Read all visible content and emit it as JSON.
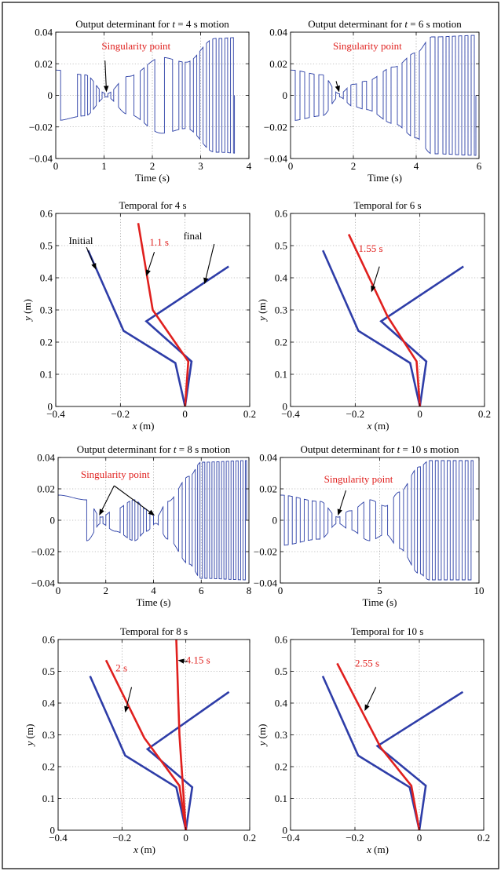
{
  "colors": {
    "signal": "#2B3FA6",
    "link_blue": "#2E3DA8",
    "link_red": "#E0201E"
  },
  "chart_data": [
    {
      "id": "det4",
      "type": "line",
      "title_parts": [
        "Output determinant for ",
        "t",
        " = 4 s motion"
      ],
      "xlabel": "Time (s)",
      "ylabel": "",
      "xlim": [
        0,
        4
      ],
      "ylim": [
        -0.04,
        0.04
      ],
      "xticks": [
        0,
        1,
        2,
        3,
        4
      ],
      "xticklabels": [
        "0",
        "1",
        "2",
        "3",
        "4"
      ],
      "yticks": [
        -0.04,
        -0.02,
        0,
        0.02,
        0.04
      ],
      "yticklabels": [
        "−0.04",
        "−0.02",
        "0",
        "0.02",
        "0.04"
      ],
      "grid": true,
      "envelope_knots": [
        [
          0,
          0.016
        ],
        [
          0.6,
          0.013
        ],
        [
          1.05,
          0.001
        ],
        [
          1.5,
          0.012
        ],
        [
          2.2,
          0.024
        ],
        [
          2.7,
          0.021
        ],
        [
          3.3,
          0.036
        ],
        [
          4,
          0.037
        ]
      ],
      "switch_times": [
        0.1,
        0.45,
        0.52,
        0.6,
        0.66,
        0.72,
        0.78,
        0.84,
        0.9,
        0.96,
        1.02,
        1.08,
        1.14,
        1.2,
        1.3,
        1.45,
        1.62,
        1.75,
        1.83,
        1.9,
        2.05,
        2.25,
        2.42,
        2.55,
        2.62,
        2.68,
        2.78,
        2.85,
        2.92,
        2.98,
        3.05,
        3.12,
        3.18,
        3.25,
        3.32,
        3.38,
        3.44,
        3.5,
        3.56,
        3.62,
        3.68
      ],
      "signal_end": 3.7,
      "annotations": [
        {
          "text": "Singularity point",
          "color": "red",
          "text_xy": [
            0.95,
            0.029
          ],
          "arrow_from": [
            1.02,
            0.022
          ],
          "arrow_to": [
            1.05,
            0.002
          ]
        }
      ]
    },
    {
      "id": "det6",
      "type": "line",
      "title_parts": [
        "Output determinant for ",
        "t",
        " = 6 s motion"
      ],
      "xlabel": "Time (s)",
      "ylabel": "",
      "xlim": [
        0,
        6
      ],
      "ylim": [
        -0.04,
        0.04
      ],
      "xticks": [
        0,
        2,
        4,
        6
      ],
      "xticklabels": [
        "0",
        "2",
        "4",
        "6"
      ],
      "yticks": [
        -0.04,
        -0.02,
        0,
        0.02,
        0.04
      ],
      "yticklabels": [
        "−0.04",
        "−0.02",
        "0",
        "0.02",
        "0.04"
      ],
      "grid": true,
      "envelope_knots": [
        [
          0,
          0.016
        ],
        [
          1.0,
          0.013
        ],
        [
          1.55,
          0.001
        ],
        [
          2.0,
          0.007
        ],
        [
          2.4,
          0.009
        ],
        [
          3.3,
          0.018
        ],
        [
          4.0,
          0.027
        ],
        [
          4.5,
          0.037
        ],
        [
          6,
          0.038
        ]
      ],
      "switch_times": [
        0.15,
        0.3,
        0.45,
        0.6,
        0.75,
        0.9,
        1.05,
        1.2,
        1.32,
        1.44,
        1.56,
        1.68,
        1.8,
        1.92,
        2.1,
        2.28,
        2.42,
        2.6,
        2.75,
        2.95,
        3.05,
        3.2,
        3.4,
        3.55,
        3.7,
        3.82,
        3.95,
        4.1,
        4.3,
        4.45,
        4.6,
        4.7,
        4.85,
        4.95,
        5.05,
        5.15,
        5.25,
        5.35,
        5.45,
        5.55,
        5.65,
        5.75,
        5.85
      ],
      "signal_end": 5.9,
      "annotations": [
        {
          "text": "Singularity point",
          "color": "red",
          "text_xy": [
            1.35,
            0.029
          ],
          "arrow_from": [
            1.45,
            0.009
          ],
          "arrow_to": [
            1.55,
            0.002
          ]
        }
      ]
    },
    {
      "id": "temp4",
      "type": "line",
      "title_parts": [
        "Temporal for 4 s"
      ],
      "xlabel_parts": [
        "x",
        " (m)"
      ],
      "ylabel_parts": [
        "y",
        " (m)"
      ],
      "xlim": [
        -0.4,
        0.2
      ],
      "ylim": [
        0,
        0.6
      ],
      "xticks": [
        -0.4,
        -0.2,
        0,
        0.2
      ],
      "xticklabels": [
        "−0.4",
        "−0.2",
        "0",
        "0.2"
      ],
      "yticks": [
        0,
        0.1,
        0.2,
        0.3,
        0.4,
        0.5,
        0.6
      ],
      "yticklabels": [
        "0",
        "0.1",
        "0.2",
        "0.3",
        "0.4",
        "0.5",
        "0.6"
      ],
      "grid": true,
      "series": [
        {
          "color": "blue",
          "points": [
            [
              -0.3,
              0.485
            ],
            [
              -0.19,
              0.235
            ],
            [
              -0.03,
              0.135
            ],
            [
              0,
              0
            ]
          ]
        },
        {
          "color": "blue",
          "points": [
            [
              0.135,
              0.435
            ],
            [
              -0.12,
              0.265
            ],
            [
              0.02,
              0.14
            ],
            [
              0,
              0
            ]
          ]
        },
        {
          "color": "red",
          "points": [
            [
              -0.145,
              0.57
            ],
            [
              -0.1,
              0.3
            ],
            [
              0.01,
              0.14
            ],
            [
              0,
              0
            ]
          ]
        }
      ],
      "annotations": [
        {
          "text": "Initial",
          "color": "black",
          "text_xy": [
            -0.36,
            0.505
          ],
          "arrow_from": [
            -0.305,
            0.495
          ],
          "arrow_to": [
            -0.275,
            0.425
          ]
        },
        {
          "text": "1.1 s",
          "color": "red",
          "text_xy": [
            -0.11,
            0.5
          ],
          "arrow_from": [
            -0.095,
            0.48
          ],
          "arrow_to": [
            -0.12,
            0.405
          ]
        },
        {
          "text": "final",
          "color": "black",
          "text_xy": [
            -0.005,
            0.52
          ],
          "arrow_from": [
            0.09,
            0.505
          ],
          "arrow_to": [
            0.06,
            0.38
          ]
        }
      ]
    },
    {
      "id": "temp6",
      "type": "line",
      "title_parts": [
        "Temporal for 6 s"
      ],
      "xlabel_parts": [
        "x",
        " (m)"
      ],
      "ylabel_parts": [
        "y",
        " (m)"
      ],
      "xlim": [
        -0.4,
        0.2
      ],
      "ylim": [
        0,
        0.6
      ],
      "xticks": [
        -0.4,
        -0.2,
        0,
        0.2
      ],
      "xticklabels": [
        "−0.4",
        "−0.2",
        "0",
        "0.2"
      ],
      "yticks": [
        0,
        0.1,
        0.2,
        0.3,
        0.4,
        0.5,
        0.6
      ],
      "yticklabels": [
        "0",
        "0.1",
        "0.2",
        "0.3",
        "0.4",
        "0.5",
        "0.6"
      ],
      "grid": true,
      "series": [
        {
          "color": "blue",
          "points": [
            [
              -0.3,
              0.485
            ],
            [
              -0.19,
              0.235
            ],
            [
              -0.03,
              0.135
            ],
            [
              0,
              0
            ]
          ]
        },
        {
          "color": "blue",
          "points": [
            [
              0.135,
              0.435
            ],
            [
              -0.12,
              0.265
            ],
            [
              0.02,
              0.14
            ],
            [
              0,
              0
            ]
          ]
        },
        {
          "color": "red",
          "points": [
            [
              -0.22,
              0.535
            ],
            [
              -0.1,
              0.28
            ],
            [
              -0.01,
              0.14
            ],
            [
              0,
              0
            ]
          ]
        }
      ],
      "annotations": [
        {
          "text": "1.55 s",
          "color": "red",
          "text_xy": [
            -0.19,
            0.48
          ],
          "arrow_from": [
            -0.125,
            0.435
          ],
          "arrow_to": [
            -0.15,
            0.355
          ]
        }
      ]
    },
    {
      "id": "det8",
      "type": "line",
      "title_parts": [
        "Output determinant for ",
        "t",
        " = 8 s motion"
      ],
      "xlabel": "Time (s)",
      "ylabel": "",
      "xlim": [
        0,
        8
      ],
      "ylim": [
        -0.04,
        0.04
      ],
      "xticks": [
        0,
        2,
        4,
        6,
        8
      ],
      "xticklabels": [
        "0",
        "2",
        "4",
        "6",
        "8"
      ],
      "yticks": [
        -0.04,
        -0.02,
        0,
        0.02,
        0.04
      ],
      "yticklabels": [
        "−0.04",
        "−0.02",
        "0",
        "0.02",
        "0.04"
      ],
      "grid": true,
      "envelope_knots": [
        [
          0,
          0.016
        ],
        [
          1.2,
          0.013
        ],
        [
          1.8,
          0.002
        ],
        [
          2.4,
          0.007
        ],
        [
          3.2,
          0.013
        ],
        [
          3.7,
          0.007
        ],
        [
          4.1,
          0.002
        ],
        [
          4.6,
          0.012
        ],
        [
          5.5,
          0.028
        ],
        [
          6.0,
          0.037
        ],
        [
          8,
          0.038
        ]
      ],
      "switch_times": [
        1.2,
        1.5,
        1.62,
        1.75,
        1.88,
        2.0,
        2.15,
        2.6,
        2.75,
        2.9,
        3.0,
        3.1,
        3.22,
        3.35,
        3.45,
        3.58,
        3.7,
        3.85,
        4.0,
        4.2,
        4.4,
        4.6,
        4.85,
        5.05,
        5.2,
        5.35,
        5.5,
        5.62,
        5.75,
        5.85,
        5.95,
        6.05,
        6.15,
        6.25,
        6.35,
        6.45,
        6.55,
        6.65,
        6.75,
        6.85,
        6.95,
        7.05,
        7.15,
        7.25,
        7.35,
        7.45,
        7.55,
        7.65,
        7.75,
        7.85
      ],
      "signal_end": 7.9,
      "annotations": [
        {
          "text": "Singularity point",
          "color": "red",
          "text_xy": [
            0.95,
            0.027
          ],
          "arrow_from": [
            2.35,
            0.022
          ],
          "arrow_to": [
            1.72,
            0.003
          ]
        },
        {
          "text": "",
          "color": "red",
          "text_xy": [
            2.35,
            0.022
          ],
          "arrow_from": [
            2.35,
            0.022
          ],
          "arrow_to": [
            4.05,
            0.003
          ]
        }
      ]
    },
    {
      "id": "det10",
      "type": "line",
      "title_parts": [
        "Output determinant for ",
        "t",
        " = 10 s motion"
      ],
      "xlabel": "Time (s)",
      "ylabel": "",
      "xlim": [
        0,
        10
      ],
      "ylim": [
        -0.04,
        0.04
      ],
      "xticks": [
        0,
        5,
        10
      ],
      "xticklabels": [
        "0",
        "5",
        "10"
      ],
      "yticks": [
        -0.04,
        -0.02,
        0,
        0.02,
        0.04
      ],
      "yticklabels": [
        "−0.04",
        "−0.02",
        "0",
        "0.02",
        "0.04"
      ],
      "grid": true,
      "envelope_knots": [
        [
          0,
          0.016
        ],
        [
          2.0,
          0.012
        ],
        [
          2.9,
          0.002
        ],
        [
          3.5,
          0.006
        ],
        [
          4.5,
          0.013
        ],
        [
          5.3,
          0.009
        ],
        [
          6.0,
          0.018
        ],
        [
          7.0,
          0.034
        ],
        [
          7.5,
          0.038
        ],
        [
          10,
          0.038
        ]
      ],
      "switch_times": [
        0.2,
        0.4,
        0.6,
        0.8,
        1.0,
        1.2,
        1.4,
        1.6,
        1.8,
        2.0,
        2.2,
        2.4,
        2.6,
        2.8,
        3.0,
        3.3,
        3.6,
        3.9,
        4.2,
        4.5,
        4.8,
        5.1,
        5.4,
        5.7,
        6.0,
        6.2,
        6.4,
        6.6,
        6.75,
        6.9,
        7.05,
        7.2,
        7.35,
        7.5,
        7.65,
        7.8,
        7.95,
        8.1,
        8.25,
        8.4,
        8.55,
        8.7,
        8.85,
        9.0,
        9.15,
        9.3,
        9.45,
        9.6
      ],
      "signal_end": 9.7,
      "annotations": [
        {
          "text": "Singularity point",
          "color": "red",
          "text_xy": [
            2.2,
            0.024
          ],
          "arrow_from": [
            3.3,
            0.019
          ],
          "arrow_to": [
            2.9,
            0.003
          ]
        }
      ]
    },
    {
      "id": "temp8",
      "type": "line",
      "title_parts": [
        "Temporal for 8 s"
      ],
      "xlabel_parts": [
        "x",
        " (m)"
      ],
      "ylabel_parts": [
        "y",
        " (m)"
      ],
      "xlim": [
        -0.4,
        0.2
      ],
      "ylim": [
        0,
        0.6
      ],
      "xticks": [
        -0.4,
        -0.2,
        0,
        0.2
      ],
      "xticklabels": [
        "−0.4",
        "−0.2",
        "0",
        "0.2"
      ],
      "yticks": [
        0,
        0.1,
        0.2,
        0.3,
        0.4,
        0.5,
        0.6
      ],
      "yticklabels": [
        "0",
        "0.1",
        "0.2",
        "0.3",
        "0.4",
        "0.5",
        "0.6"
      ],
      "grid": true,
      "series": [
        {
          "color": "blue",
          "points": [
            [
              -0.3,
              0.485
            ],
            [
              -0.19,
              0.235
            ],
            [
              -0.03,
              0.135
            ],
            [
              0,
              0
            ]
          ]
        },
        {
          "color": "blue",
          "points": [
            [
              0.135,
              0.435
            ],
            [
              -0.12,
              0.255
            ],
            [
              0.02,
              0.135
            ],
            [
              0,
              0
            ]
          ]
        },
        {
          "color": "red",
          "points": [
            [
              -0.25,
              0.535
            ],
            [
              -0.13,
              0.29
            ],
            [
              -0.02,
              0.14
            ],
            [
              0,
              0
            ]
          ]
        },
        {
          "color": "red",
          "points": [
            [
              -0.03,
              0.6
            ],
            [
              -0.02,
              0.3
            ],
            [
              0,
              0
            ]
          ]
        }
      ],
      "annotations": [
        {
          "text": "2 s",
          "color": "red",
          "text_xy": [
            -0.22,
            0.5
          ],
          "arrow_from": [
            -0.17,
            0.45
          ],
          "arrow_to": [
            -0.19,
            0.37
          ]
        },
        {
          "text": "4.15 s",
          "color": "red",
          "text_xy": [
            0.0,
            0.525
          ],
          "arrow_from": [
            0.005,
            0.53
          ],
          "arrow_to": [
            -0.025,
            0.535
          ]
        }
      ]
    },
    {
      "id": "temp10",
      "type": "line",
      "title_parts": [
        "Temporal for 10 s"
      ],
      "xlabel_parts": [
        "x",
        " (m)"
      ],
      "ylabel_parts": [
        "y",
        " (m)"
      ],
      "xlim": [
        -0.4,
        0.2
      ],
      "ylim": [
        0,
        0.6
      ],
      "xticks": [
        -0.4,
        -0.2,
        0,
        0.2
      ],
      "xticklabels": [
        "−0.4",
        "−0.2",
        "0",
        "0.2"
      ],
      "yticks": [
        0,
        0.1,
        0.2,
        0.3,
        0.4,
        0.5,
        0.6
      ],
      "yticklabels": [
        "0",
        "0.1",
        "0.2",
        "0.3",
        "0.4",
        "0.5",
        "0.6"
      ],
      "grid": true,
      "series": [
        {
          "color": "blue",
          "points": [
            [
              -0.3,
              0.485
            ],
            [
              -0.19,
              0.235
            ],
            [
              -0.03,
              0.135
            ],
            [
              0,
              0
            ]
          ]
        },
        {
          "color": "blue",
          "points": [
            [
              0.135,
              0.435
            ],
            [
              -0.13,
              0.265
            ],
            [
              0.02,
              0.14
            ],
            [
              0,
              0
            ]
          ]
        },
        {
          "color": "red",
          "points": [
            [
              -0.255,
              0.525
            ],
            [
              -0.12,
              0.26
            ],
            [
              -0.025,
              0.14
            ],
            [
              0,
              0
            ]
          ]
        }
      ],
      "annotations": [
        {
          "text": "2.55 s",
          "color": "red",
          "text_xy": [
            -0.2,
            0.515
          ],
          "arrow_from": [
            -0.135,
            0.45
          ],
          "arrow_to": [
            -0.17,
            0.375
          ]
        }
      ]
    }
  ]
}
